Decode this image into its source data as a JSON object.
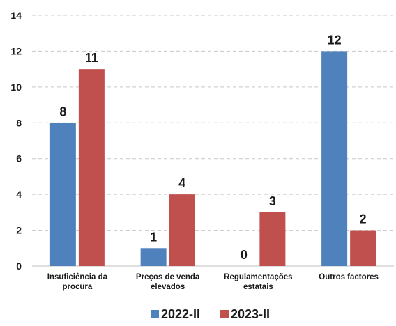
{
  "chart_data": {
    "type": "bar",
    "categories": [
      [
        "Insuficiência da",
        "procura"
      ],
      [
        "Preços de venda",
        "elevados"
      ],
      [
        "Regulamentações",
        "estatais"
      ],
      [
        "Outros factores"
      ]
    ],
    "series": [
      {
        "name": "2022-II",
        "values": [
          8,
          1,
          0,
          12
        ],
        "color": "#4f81bd"
      },
      {
        "name": "2023-II",
        "values": [
          11,
          4,
          3,
          2
        ],
        "color": "#c0504d"
      }
    ],
    "ylim": [
      0,
      14
    ],
    "yticks": [
      0,
      2,
      4,
      6,
      8,
      10,
      12,
      14
    ],
    "grid": true,
    "legend_position": "bottom"
  }
}
